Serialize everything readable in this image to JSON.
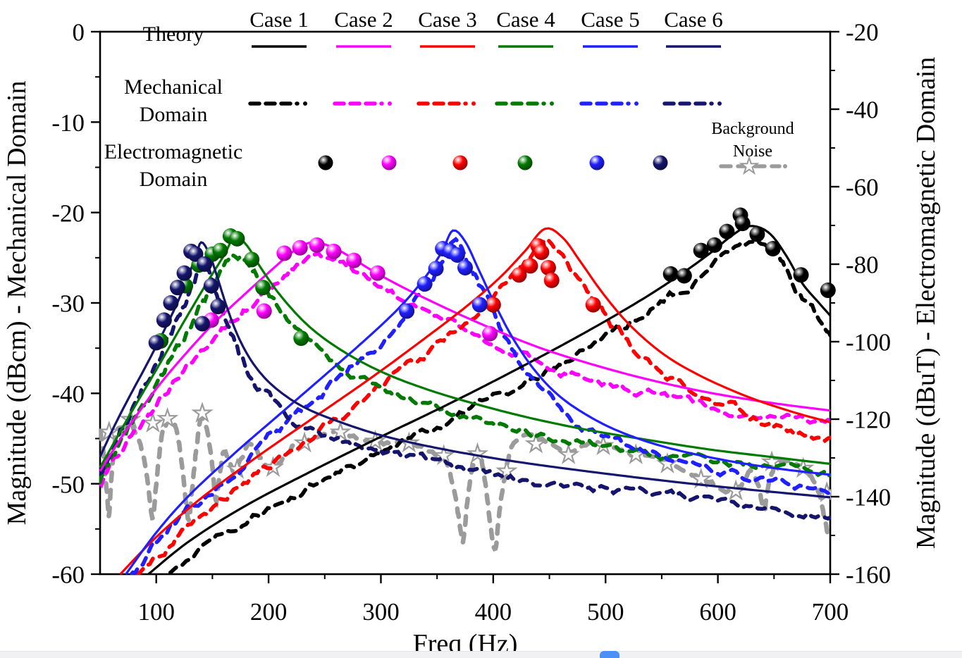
{
  "chart_data": {
    "type": "line",
    "title": "",
    "xlabel": "Freq (Hz)",
    "ylabel_left": "Magnitude (dBcm) - Mechanical Domain",
    "ylabel_right": "Magnitude (dBuT) - Electromagnetic Domain",
    "x_range": [
      50,
      700
    ],
    "y_left_range": [
      -60,
      0
    ],
    "y_right_range": [
      -160,
      -20
    ],
    "x_ticks": [
      100,
      200,
      300,
      400,
      500,
      600,
      700
    ],
    "x_minor_ticks": [
      150,
      250,
      350,
      450,
      550,
      650
    ],
    "y_left_ticks": [
      0,
      -10,
      -20,
      -30,
      -40,
      -50,
      -60
    ],
    "y_left_minor_ticks": [
      -5,
      -15,
      -25,
      -35,
      -45,
      -55
    ],
    "y_right_ticks": [
      -20,
      -40,
      -60,
      -80,
      -100,
      -120,
      -140,
      -160
    ],
    "y_right_minor_ticks": [
      -30,
      -50,
      -70,
      -90,
      -110,
      -130,
      -150
    ],
    "grid": false,
    "legend": {
      "cases": [
        "Case 1",
        "Case 2",
        "Case 3",
        "Case 4",
        "Case 5",
        "Case 6"
      ],
      "rows": [
        "Theory",
        "Mechanical Domain",
        "Electromagnetic Domain"
      ],
      "noise": "Background Noise"
    },
    "series": [
      {
        "name": "Case 1",
        "color": "#000000",
        "mech_offset_dB": 1.8,
        "theory": [
          [
            93,
            -60
          ],
          [
            130,
            -56.3
          ],
          [
            180,
            -52.4
          ],
          [
            240,
            -48.5
          ],
          [
            300,
            -44.8
          ],
          [
            360,
            -41.2
          ],
          [
            420,
            -37.4
          ],
          [
            480,
            -33.4
          ],
          [
            530,
            -29.8
          ],
          [
            565,
            -27
          ],
          [
            592,
            -24.6
          ],
          [
            612,
            -22.6
          ],
          [
            628,
            -21.5
          ],
          [
            645,
            -22.2
          ],
          [
            660,
            -24.6
          ],
          [
            675,
            -27.8
          ],
          [
            690,
            -30
          ],
          [
            700,
            -31.4
          ]
        ],
        "em_points": [
          [
            558,
            -26.8
          ],
          [
            570,
            -27
          ],
          [
            585,
            -24.2
          ],
          [
            597,
            -23.6
          ],
          [
            608,
            -22.1
          ],
          [
            620,
            -20.3
          ],
          [
            622,
            -21.2
          ],
          [
            635,
            -22.4
          ],
          [
            649,
            -24
          ],
          [
            674,
            -26.9
          ],
          [
            698,
            -28.6
          ]
        ]
      },
      {
        "name": "Case 2",
        "color": "#FF00FF",
        "mech_offset_dB": 1.5,
        "theory": [
          [
            50,
            -48.6
          ],
          [
            70,
            -44.7
          ],
          [
            95,
            -40.3
          ],
          [
            120,
            -36.5
          ],
          [
            150,
            -32.4
          ],
          [
            180,
            -28.9
          ],
          [
            205,
            -26.1
          ],
          [
            222,
            -24.3
          ],
          [
            238,
            -23.3
          ],
          [
            254,
            -23.7
          ],
          [
            270,
            -24.7
          ],
          [
            292,
            -26.4
          ],
          [
            320,
            -28.3
          ],
          [
            360,
            -30.7
          ],
          [
            400,
            -32.9
          ],
          [
            440,
            -34.9
          ],
          [
            480,
            -36.5
          ],
          [
            520,
            -37.9
          ],
          [
            560,
            -39.1
          ],
          [
            600,
            -40.1
          ],
          [
            650,
            -41.1
          ],
          [
            700,
            -41.9
          ]
        ],
        "em_points": [
          [
            149,
            -31.9
          ],
          [
            196,
            -30.9
          ],
          [
            214,
            -24.5
          ],
          [
            228,
            -23.9
          ],
          [
            243,
            -23.6
          ],
          [
            258,
            -24.3
          ],
          [
            276,
            -25.3
          ],
          [
            297,
            -26.7
          ],
          [
            397,
            -33.4
          ]
        ]
      },
      {
        "name": "Case 3",
        "color": "#FF0000",
        "mech_offset_dB": 1.9,
        "theory": [
          [
            68,
            -60
          ],
          [
            100,
            -55.9
          ],
          [
            140,
            -51.6
          ],
          [
            190,
            -47
          ],
          [
            240,
            -42.7
          ],
          [
            290,
            -38.4
          ],
          [
            335,
            -34.3
          ],
          [
            375,
            -30.5
          ],
          [
            405,
            -27.3
          ],
          [
            428,
            -24.3
          ],
          [
            446,
            -21.8
          ],
          [
            462,
            -22.8
          ],
          [
            478,
            -25.5
          ],
          [
            498,
            -29
          ],
          [
            522,
            -32.5
          ],
          [
            552,
            -35.7
          ],
          [
            585,
            -38.1
          ],
          [
            625,
            -40.3
          ],
          [
            665,
            -42
          ],
          [
            700,
            -43.2
          ]
        ],
        "em_points": [
          [
            400,
            -30.2
          ],
          [
            423,
            -26.9
          ],
          [
            433,
            -25.9
          ],
          [
            440,
            -23.7
          ],
          [
            443,
            -24.4
          ],
          [
            449,
            -26.1
          ],
          [
            452,
            -27.5
          ],
          [
            489,
            -30.2
          ]
        ]
      },
      {
        "name": "Case 4",
        "color": "#007A00",
        "mech_offset_dB": 1.6,
        "theory": [
          [
            50,
            -48.2
          ],
          [
            75,
            -42.7
          ],
          [
            100,
            -37.4
          ],
          [
            125,
            -32
          ],
          [
            145,
            -27.8
          ],
          [
            160,
            -24.8
          ],
          [
            170,
            -22.7
          ],
          [
            181,
            -23.7
          ],
          [
            193,
            -26.1
          ],
          [
            212,
            -29.4
          ],
          [
            237,
            -32.7
          ],
          [
            267,
            -35.4
          ],
          [
            302,
            -37.7
          ],
          [
            342,
            -39.6
          ],
          [
            385,
            -41.2
          ],
          [
            432,
            -42.7
          ],
          [
            482,
            -44
          ],
          [
            535,
            -45.1
          ],
          [
            592,
            -46.2
          ],
          [
            645,
            -47
          ],
          [
            700,
            -47.8
          ]
        ],
        "em_points": [
          [
            104,
            -34.2
          ],
          [
            126,
            -28.1
          ],
          [
            138,
            -25.8
          ],
          [
            150,
            -24.6
          ],
          [
            157,
            -24.2
          ],
          [
            166,
            -22.6
          ],
          [
            172,
            -22.9
          ],
          [
            185,
            -25.2
          ],
          [
            195,
            -28.3
          ],
          [
            229,
            -33.9
          ]
        ]
      },
      {
        "name": "Case 5",
        "color": "#1F1FFF",
        "mech_offset_dB": 1.6,
        "theory": [
          [
            73,
            -60
          ],
          [
            100,
            -55.4
          ],
          [
            130,
            -51.2
          ],
          [
            170,
            -46.6
          ],
          [
            210,
            -42.3
          ],
          [
            250,
            -38
          ],
          [
            285,
            -34.2
          ],
          [
            315,
            -30.7
          ],
          [
            338,
            -27.4
          ],
          [
            354,
            -24.4
          ],
          [
            364,
            -22
          ],
          [
            375,
            -23.2
          ],
          [
            387,
            -26.3
          ],
          [
            401,
            -30
          ],
          [
            417,
            -33.8
          ],
          [
            436,
            -37.3
          ],
          [
            457,
            -40.1
          ],
          [
            482,
            -42.3
          ],
          [
            512,
            -44.2
          ],
          [
            552,
            -45.9
          ],
          [
            602,
            -47.3
          ],
          [
            652,
            -48.3
          ],
          [
            700,
            -49
          ]
        ],
        "em_points": [
          [
            323,
            -30.9
          ],
          [
            339,
            -27.9
          ],
          [
            349,
            -26.2
          ],
          [
            355,
            -24
          ],
          [
            362,
            -24.3
          ],
          [
            368,
            -24.7
          ],
          [
            375,
            -26.1
          ],
          [
            388,
            -30.2
          ]
        ]
      },
      {
        "name": "Case 6",
        "color": "#15156E",
        "mech_offset_dB": 1.9,
        "theory": [
          [
            50,
            -47
          ],
          [
            62,
            -43.8
          ],
          [
            76,
            -40.4
          ],
          [
            92,
            -36.7
          ],
          [
            106,
            -33.3
          ],
          [
            118,
            -30.2
          ],
          [
            128,
            -27.2
          ],
          [
            135,
            -24.9
          ],
          [
            140,
            -23.3
          ],
          [
            147,
            -24.5
          ],
          [
            154,
            -27
          ],
          [
            163,
            -30.5
          ],
          [
            174,
            -34
          ],
          [
            188,
            -37
          ],
          [
            206,
            -39.4
          ],
          [
            231,
            -41.5
          ],
          [
            262,
            -43.1
          ],
          [
            302,
            -44.7
          ],
          [
            352,
            -46.1
          ],
          [
            412,
            -47.4
          ],
          [
            482,
            -48.6
          ],
          [
            562,
            -49.8
          ],
          [
            632,
            -50.7
          ],
          [
            700,
            -51.5
          ]
        ],
        "em_points": [
          [
            100,
            -34.4
          ],
          [
            107,
            -31.9
          ],
          [
            113,
            -30
          ],
          [
            119,
            -28.3
          ],
          [
            125,
            -26.7
          ],
          [
            131,
            -24.3
          ],
          [
            135,
            -24.6
          ],
          [
            141,
            -32.3
          ],
          [
            143,
            -25.7
          ],
          [
            149,
            -28.1
          ],
          [
            155,
            -30.4
          ]
        ]
      }
    ],
    "noise": {
      "name": "Background Noise",
      "color": "#9B9B9B",
      "points": [
        [
          50,
          -44.2
        ],
        [
          53,
          -46.5
        ],
        [
          56,
          -51
        ],
        [
          58,
          -53.5
        ],
        [
          60,
          -49.5
        ],
        [
          63,
          -45.5
        ],
        [
          67,
          -43.8
        ],
        [
          71,
          -44.8
        ],
        [
          75,
          -43.2
        ],
        [
          79,
          -43.8
        ],
        [
          83,
          -44.6
        ],
        [
          87,
          -46.2
        ],
        [
          91,
          -48.5
        ],
        [
          94,
          -51.5
        ],
        [
          97,
          -54
        ],
        [
          100,
          -50
        ],
        [
          104,
          -45.5
        ],
        [
          108,
          -43.6
        ],
        [
          113,
          -42.9
        ],
        [
          118,
          -44.2
        ],
        [
          122,
          -47
        ],
        [
          126,
          -51.5
        ],
        [
          129,
          -54
        ],
        [
          132,
          -50.5
        ],
        [
          136,
          -45.8
        ],
        [
          140,
          -42.6
        ],
        [
          145,
          -44
        ],
        [
          149,
          -47
        ],
        [
          153,
          -51.8
        ],
        [
          156,
          -49.5
        ],
        [
          160,
          -46.5
        ],
        [
          165,
          -47.6
        ],
        [
          170,
          -48.6
        ],
        [
          176,
          -47.2
        ],
        [
          183,
          -45.7
        ],
        [
          190,
          -46.6
        ],
        [
          198,
          -48
        ],
        [
          205,
          -48.4
        ],
        [
          213,
          -47.1
        ],
        [
          221,
          -46
        ],
        [
          229,
          -45.4
        ],
        [
          239,
          -44.9
        ],
        [
          249,
          -44.5
        ],
        [
          259,
          -44.3
        ],
        [
          269,
          -44.6
        ],
        [
          279,
          -45
        ],
        [
          289,
          -45.2
        ],
        [
          299,
          -45.4
        ],
        [
          309,
          -45.5
        ],
        [
          319,
          -45.4
        ],
        [
          329,
          -45.7
        ],
        [
          339,
          -46.2
        ],
        [
          349,
          -46.8
        ],
        [
          357,
          -47.1
        ],
        [
          364,
          -50
        ],
        [
          369,
          -53.5
        ],
        [
          373,
          -56.3
        ],
        [
          377,
          -52
        ],
        [
          382,
          -47.8
        ],
        [
          388,
          -46.6
        ],
        [
          393,
          -50
        ],
        [
          398,
          -55
        ],
        [
          402,
          -57
        ],
        [
          406,
          -52.5
        ],
        [
          411,
          -48.6
        ],
        [
          416,
          -46.2
        ],
        [
          423,
          -45.1
        ],
        [
          431,
          -44.7
        ],
        [
          439,
          -44.9
        ],
        [
          449,
          -45.5
        ],
        [
          459,
          -46.3
        ],
        [
          468,
          -46.5
        ],
        [
          479,
          -45.9
        ],
        [
          489,
          -45.4
        ],
        [
          499,
          -45.7
        ],
        [
          509,
          -46.1
        ],
        [
          519,
          -46.5
        ],
        [
          529,
          -46.7
        ],
        [
          539,
          -47.1
        ],
        [
          549,
          -47.4
        ],
        [
          557,
          -47.7
        ],
        [
          567,
          -48.3
        ],
        [
          577,
          -49
        ],
        [
          587,
          -49.4
        ],
        [
          597,
          -50.1
        ],
        [
          607,
          -50.7
        ],
        [
          613,
          -50.9
        ],
        [
          621,
          -50
        ],
        [
          629,
          -48.7
        ],
        [
          636,
          -50.2
        ],
        [
          641,
          -53
        ],
        [
          645,
          -50.2
        ],
        [
          651,
          -47.9
        ],
        [
          659,
          -47.4
        ],
        [
          667,
          -47.7
        ],
        [
          675,
          -48.3
        ],
        [
          683,
          -49.1
        ],
        [
          689,
          -50.6
        ],
        [
          693,
          -52.6
        ],
        [
          697,
          -55
        ],
        [
          700,
          -56.2
        ]
      ],
      "stars": [
        [
          58,
          -44.3
        ],
        [
          77,
          -42.9
        ],
        [
          97,
          -43.3
        ],
        [
          110,
          -42.8
        ],
        [
          141,
          -42.2
        ],
        [
          172,
          -48.4
        ],
        [
          204,
          -48.2
        ],
        [
          232,
          -45.5
        ],
        [
          264,
          -44.3
        ],
        [
          295,
          -45.3
        ],
        [
          325,
          -45.5
        ],
        [
          356,
          -46.9
        ],
        [
          386,
          -46.7
        ],
        [
          412,
          -48.6
        ],
        [
          438,
          -45.6
        ],
        [
          467,
          -46.8
        ],
        [
          498,
          -45.8
        ],
        [
          527,
          -46.8
        ],
        [
          555,
          -47.8
        ],
        [
          585,
          -49.5
        ],
        [
          616,
          -50.8
        ],
        [
          648,
          -47.6
        ],
        [
          676,
          -48.3
        ],
        [
          697,
          -51
        ]
      ]
    }
  }
}
